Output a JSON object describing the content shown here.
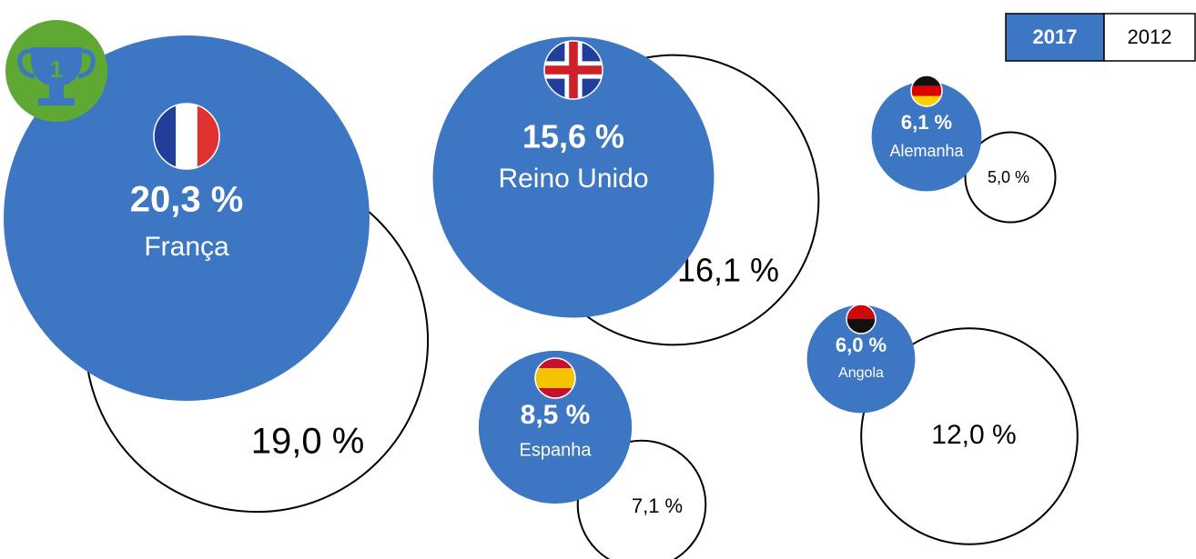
{
  "chart_data": {
    "type": "bubble",
    "categories": [
      "França",
      "Reino Unido",
      "Espanha",
      "Alemanha",
      "Angola"
    ],
    "series": [
      {
        "name": "2017",
        "color": "#3d76c2",
        "values": [
          20.3,
          15.6,
          8.5,
          6.1,
          6.0
        ],
        "value_labels": [
          "20,3 %",
          "15,6 %",
          "8,5 %",
          "6,1 %",
          "6,0 %"
        ]
      },
      {
        "name": "2012",
        "color": "#ffffff",
        "values": [
          19.0,
          16.1,
          7.1,
          5.0,
          12.0
        ],
        "value_labels": [
          "19,0 %",
          "16,1 %",
          "7,1 %",
          "5,0 %",
          "12,0 %"
        ]
      }
    ]
  }
}
